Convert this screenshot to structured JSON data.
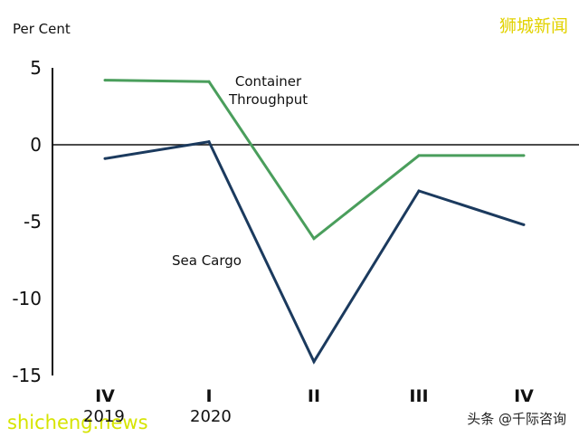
{
  "chart_data": {
    "type": "line",
    "title": "",
    "ylabel": "Per Cent",
    "xlabel": "",
    "categories": [
      "IV",
      "I",
      "II",
      "III",
      "IV"
    ],
    "years": [
      "2019",
      "2020"
    ],
    "yticks": [
      5,
      0,
      -5,
      -10,
      -15
    ],
    "ylim": [
      -15,
      5
    ],
    "series": [
      {
        "name": "Container Throughput",
        "label_line1": "Container",
        "label_line2": "Throughput",
        "values": [
          4.2,
          4.1,
          -6.1,
          -0.7,
          -0.7
        ],
        "color": "#4a9e5c"
      },
      {
        "name": "Sea Cargo",
        "label_line1": "Sea Cargo",
        "values": [
          -0.9,
          0.2,
          -14.1,
          -3.0,
          -5.2
        ],
        "color": "#1b3a5e"
      }
    ]
  },
  "watermarks": {
    "top_right": "狮城新闻",
    "bottom_left": "shicheng.news",
    "bottom_right": "头条 @千际咨询"
  }
}
